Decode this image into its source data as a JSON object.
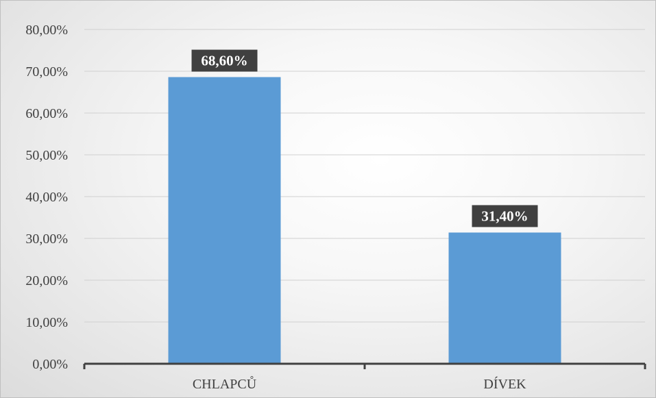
{
  "chart_data": {
    "type": "bar",
    "categories": [
      "CHLAPCŮ",
      "DÍVEK"
    ],
    "values": [
      68.6,
      31.4
    ],
    "data_labels": [
      "68,60%",
      "31,40%"
    ],
    "title": "",
    "xlabel": "",
    "ylabel": "",
    "ylim": [
      0,
      80
    ],
    "y_ticks": [
      0,
      10,
      20,
      30,
      40,
      50,
      60,
      70,
      80
    ],
    "y_tick_labels": [
      "0,00%",
      "10,00%",
      "20,00%",
      "30,00%",
      "40,00%",
      "50,00%",
      "60,00%",
      "70,00%",
      "80,00%"
    ],
    "grid": true,
    "legend": "none",
    "bar_color": "#5b9bd5",
    "data_label_background": "#404040"
  }
}
